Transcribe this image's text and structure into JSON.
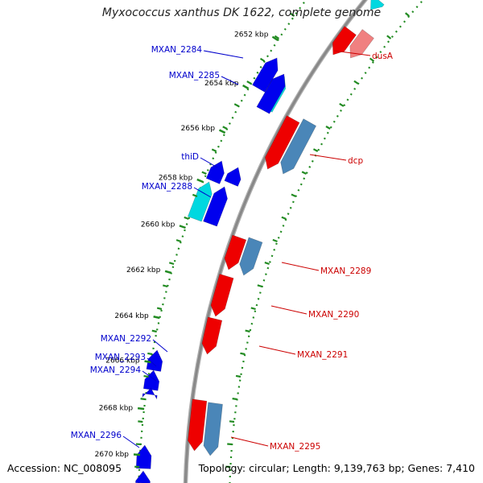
{
  "header": {
    "title": "Myxococcus xanthus DK 1622, complete genome"
  },
  "footer": {
    "accession": "Accession: NC_008095",
    "summary": "Topology: circular; Length: 9,139,763 bp; Genes: 7,410"
  },
  "colors": {
    "forward_gene": "#0000ee",
    "forward_gene_alt": "#00d8e0",
    "reverse_gene": "#ee0000",
    "reverse_gene_alt": "#4a86b8",
    "reverse_gene_faded": "#f08080",
    "backbone": "#888888",
    "tick": "#228b22",
    "forward_label": "#0000cc",
    "reverse_label": "#cc0000"
  },
  "ticks": [
    {
      "label": "2652 kbp"
    },
    {
      "label": "2654 kbp"
    },
    {
      "label": "2656 kbp"
    },
    {
      "label": "2658 kbp"
    },
    {
      "label": "2660 kbp"
    },
    {
      "label": "2662 kbp"
    },
    {
      "label": "2664 kbp"
    },
    {
      "label": "2666 kbp"
    },
    {
      "label": "2668 kbp"
    },
    {
      "label": "2670 kbp"
    }
  ],
  "forward_labels": [
    {
      "text": "MXAN_2284"
    },
    {
      "text": "MXAN_2285"
    },
    {
      "text": "thiD"
    },
    {
      "text": "MXAN_2288"
    },
    {
      "text": "MXAN_2292"
    },
    {
      "text": "MXAN_2293"
    },
    {
      "text": "MXAN_2294"
    },
    {
      "text": "MXAN_2296"
    }
  ],
  "reverse_labels": [
    {
      "text": "dusA"
    },
    {
      "text": "dcp"
    },
    {
      "text": "MXAN_2289"
    },
    {
      "text": "MXAN_2290"
    },
    {
      "text": "MXAN_2291"
    },
    {
      "text": "MXAN_2295"
    }
  ]
}
